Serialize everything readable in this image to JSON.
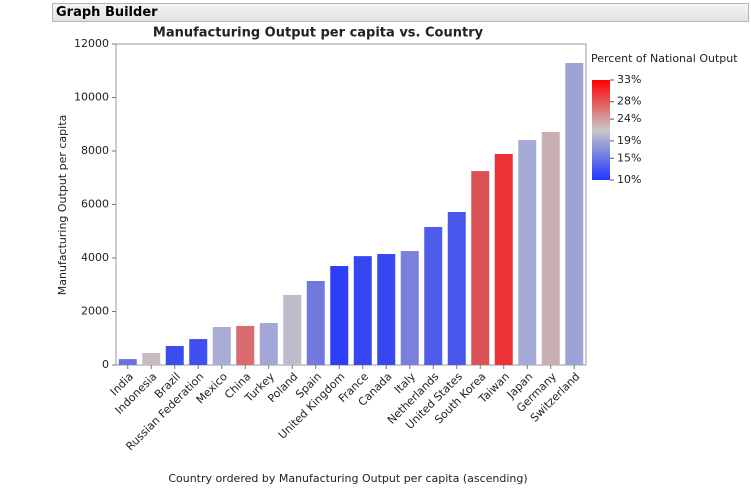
{
  "header": {
    "title": "Graph Builder"
  },
  "chart_data": {
    "type": "bar",
    "title": "Manufacturing Output per capita vs. Country",
    "x_label": "Country ordered by Manufacturing Output per capita (ascending)",
    "y_label": "Manufacturing Output per capita",
    "categories": [
      "India",
      "Indonesia",
      "Brazil",
      "Russian Federation",
      "Mexico",
      "China",
      "Turkey",
      "Poland",
      "Spain",
      "United Kingdom",
      "France",
      "Canada",
      "Italy",
      "Netherlands",
      "United States",
      "South Korea",
      "Taiwan",
      "Japan",
      "Germany",
      "Switzerland"
    ],
    "values": [
      220,
      450,
      710,
      970,
      1420,
      1460,
      1570,
      2620,
      3140,
      3700,
      4070,
      4150,
      4260,
      5160,
      5720,
      7250,
      7890,
      8410,
      8710,
      11290
    ],
    "colors": [
      "#6b72e0",
      "#c8bcc0",
      "#3a4ef0",
      "#3f4ff0",
      "#a9acd4",
      "#d86b6e",
      "#a2a6d8",
      "#bdbccb",
      "#7378dc",
      "#2d3ef8",
      "#3646f3",
      "#3748f2",
      "#7a80dc",
      "#4f5cea",
      "#4a57ec",
      "#dc5357",
      "#ec3236",
      "#a6aad6",
      "#c8afb3",
      "#9ea3d6"
    ],
    "ylim": [
      0,
      12000
    ],
    "yticks": [
      0,
      2000,
      4000,
      6000,
      8000,
      10000,
      12000
    ],
    "legend": {
      "title": "Percent of National Output",
      "colors": [
        "#ff0000",
        "#c8c8c8",
        "#1f35ff"
      ],
      "ticks": [
        {
          "value": 33,
          "label": "33%"
        },
        {
          "value": 28,
          "label": "28%"
        },
        {
          "value": 24,
          "label": "24%"
        },
        {
          "value": 19,
          "label": "19%"
        },
        {
          "value": 15,
          "label": "15%"
        },
        {
          "value": 10,
          "label": "10%"
        }
      ]
    }
  }
}
